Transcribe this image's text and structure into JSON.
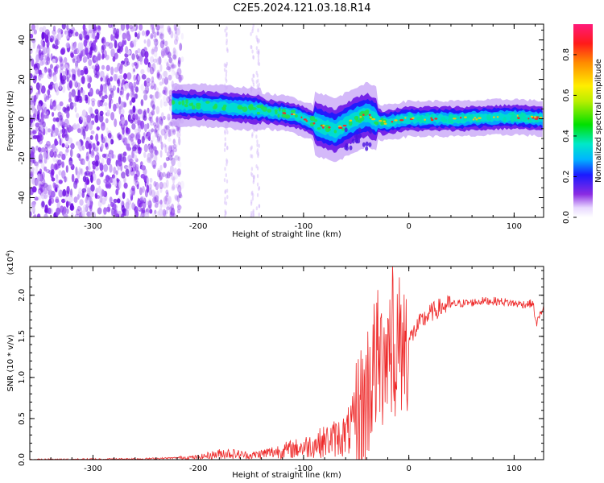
{
  "title": "C2E5.2024.121.03.18.R14",
  "colorbar": {
    "label": "Normalized spectral amplitude",
    "ticks": [
      "0.0",
      "0.2",
      "0.4",
      "0.6",
      "0.8"
    ]
  },
  "chart_data": [
    {
      "type": "heatmap",
      "xlabel": "Height of straight line (km)",
      "ylabel": "Frequency (Hz)",
      "xlim": [
        -360,
        128
      ],
      "ylim": [
        -50,
        48
      ],
      "x_ticks": [
        "-300",
        "-200",
        "-100",
        "0",
        "100"
      ],
      "y_ticks": [
        "-40",
        "-20",
        "0",
        "20",
        "40"
      ],
      "colorbar_range": [
        0,
        0.95
      ],
      "regions": [
        {
          "x_start": -360,
          "x_end": -225,
          "freq_span": [
            -50,
            48
          ],
          "amplitude": 0.1
        },
        {
          "x_start": -225,
          "x_end": 128,
          "freq_center": 0,
          "amplitude": 0.6
        }
      ],
      "ridge": [
        {
          "x": -225,
          "freq": 7
        },
        {
          "x": -200,
          "freq": 7
        },
        {
          "x": -150,
          "freq": 5
        },
        {
          "x": -110,
          "freq": 2
        },
        {
          "x": -85,
          "freq": -3
        },
        {
          "x": -70,
          "freq": -6
        },
        {
          "x": -50,
          "freq": 0
        },
        {
          "x": -40,
          "freq": 2
        },
        {
          "x": -25,
          "freq": -2
        },
        {
          "x": 0,
          "freq": 0
        },
        {
          "x": 50,
          "freq": 0
        },
        {
          "x": 100,
          "freq": 1
        },
        {
          "x": 128,
          "freq": 0
        }
      ]
    },
    {
      "type": "line",
      "xlabel": "Height of straight line (km)",
      "ylabel": "SNR (10 * v/v)",
      "y_multiplier": "(x10",
      "y_multiplier_exp": "4",
      "y_multiplier_close": ")",
      "xlim": [
        -360,
        128
      ],
      "ylim": [
        0,
        2.35
      ],
      "x_ticks": [
        "-300",
        "-200",
        "-100",
        "0",
        "100"
      ],
      "y_ticks": [
        "0.0",
        "0.5",
        "1.0",
        "1.5",
        "2.0"
      ],
      "series": [
        {
          "color": "#ee2a2a",
          "x": [
            -360,
            -250,
            -200,
            -175,
            -150,
            -125,
            -100,
            -80,
            -60,
            -45,
            -40,
            -35,
            -30,
            -25,
            -20,
            -15,
            -10,
            -5,
            0,
            5,
            10,
            20,
            30,
            40,
            50,
            60,
            70,
            80,
            90,
            100,
            110,
            118,
            121,
            128
          ],
          "y": [
            0.0,
            0.01,
            0.03,
            0.08,
            0.05,
            0.1,
            0.15,
            0.22,
            0.3,
            0.55,
            0.8,
            1.05,
            1.2,
            1.2,
            1.3,
            1.4,
            1.4,
            1.4,
            1.45,
            1.55,
            1.65,
            1.78,
            1.85,
            1.89,
            1.9,
            1.91,
            1.93,
            1.93,
            1.92,
            1.9,
            1.89,
            1.9,
            1.65,
            1.86
          ]
        }
      ]
    }
  ]
}
